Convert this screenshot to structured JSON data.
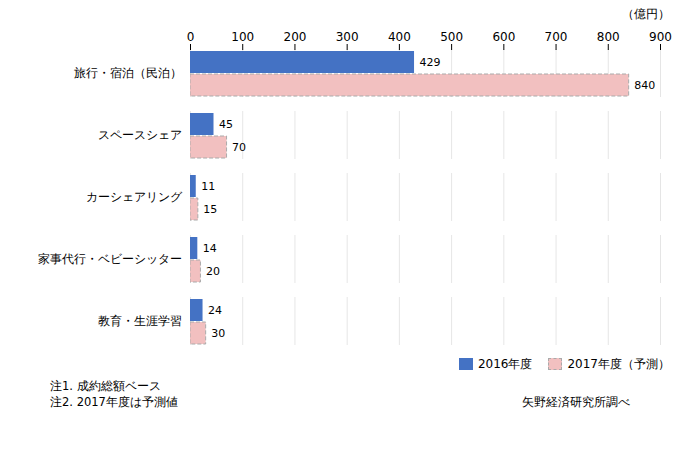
{
  "chart_data": {
    "type": "bar",
    "orientation": "horizontal",
    "categories": [
      "旅行・宿泊（民泊）",
      "スペースシェア",
      "カーシェアリング",
      "家事代行・ベビーシッター",
      "教育・生涯学習"
    ],
    "series": [
      {
        "name": "2016年度",
        "color": "#4472c4",
        "values": [
          429,
          45,
          11,
          14,
          24
        ]
      },
      {
        "name": "2017年度（予測）",
        "color": "#f2c0c0",
        "line_style": "dashed",
        "values": [
          840,
          70,
          15,
          20,
          30
        ]
      }
    ],
    "xlabel": "（億円）",
    "xlim": [
      0,
      900
    ],
    "xticks": [
      0,
      100,
      200,
      300,
      400,
      500,
      600,
      700,
      800,
      900
    ],
    "grid": true,
    "data_labels": true,
    "legend": "lower right",
    "notes": [
      "注1. 成約総額ベース",
      "注2. 2017年度は予測値"
    ],
    "source": "矢野経済研究所調べ"
  }
}
